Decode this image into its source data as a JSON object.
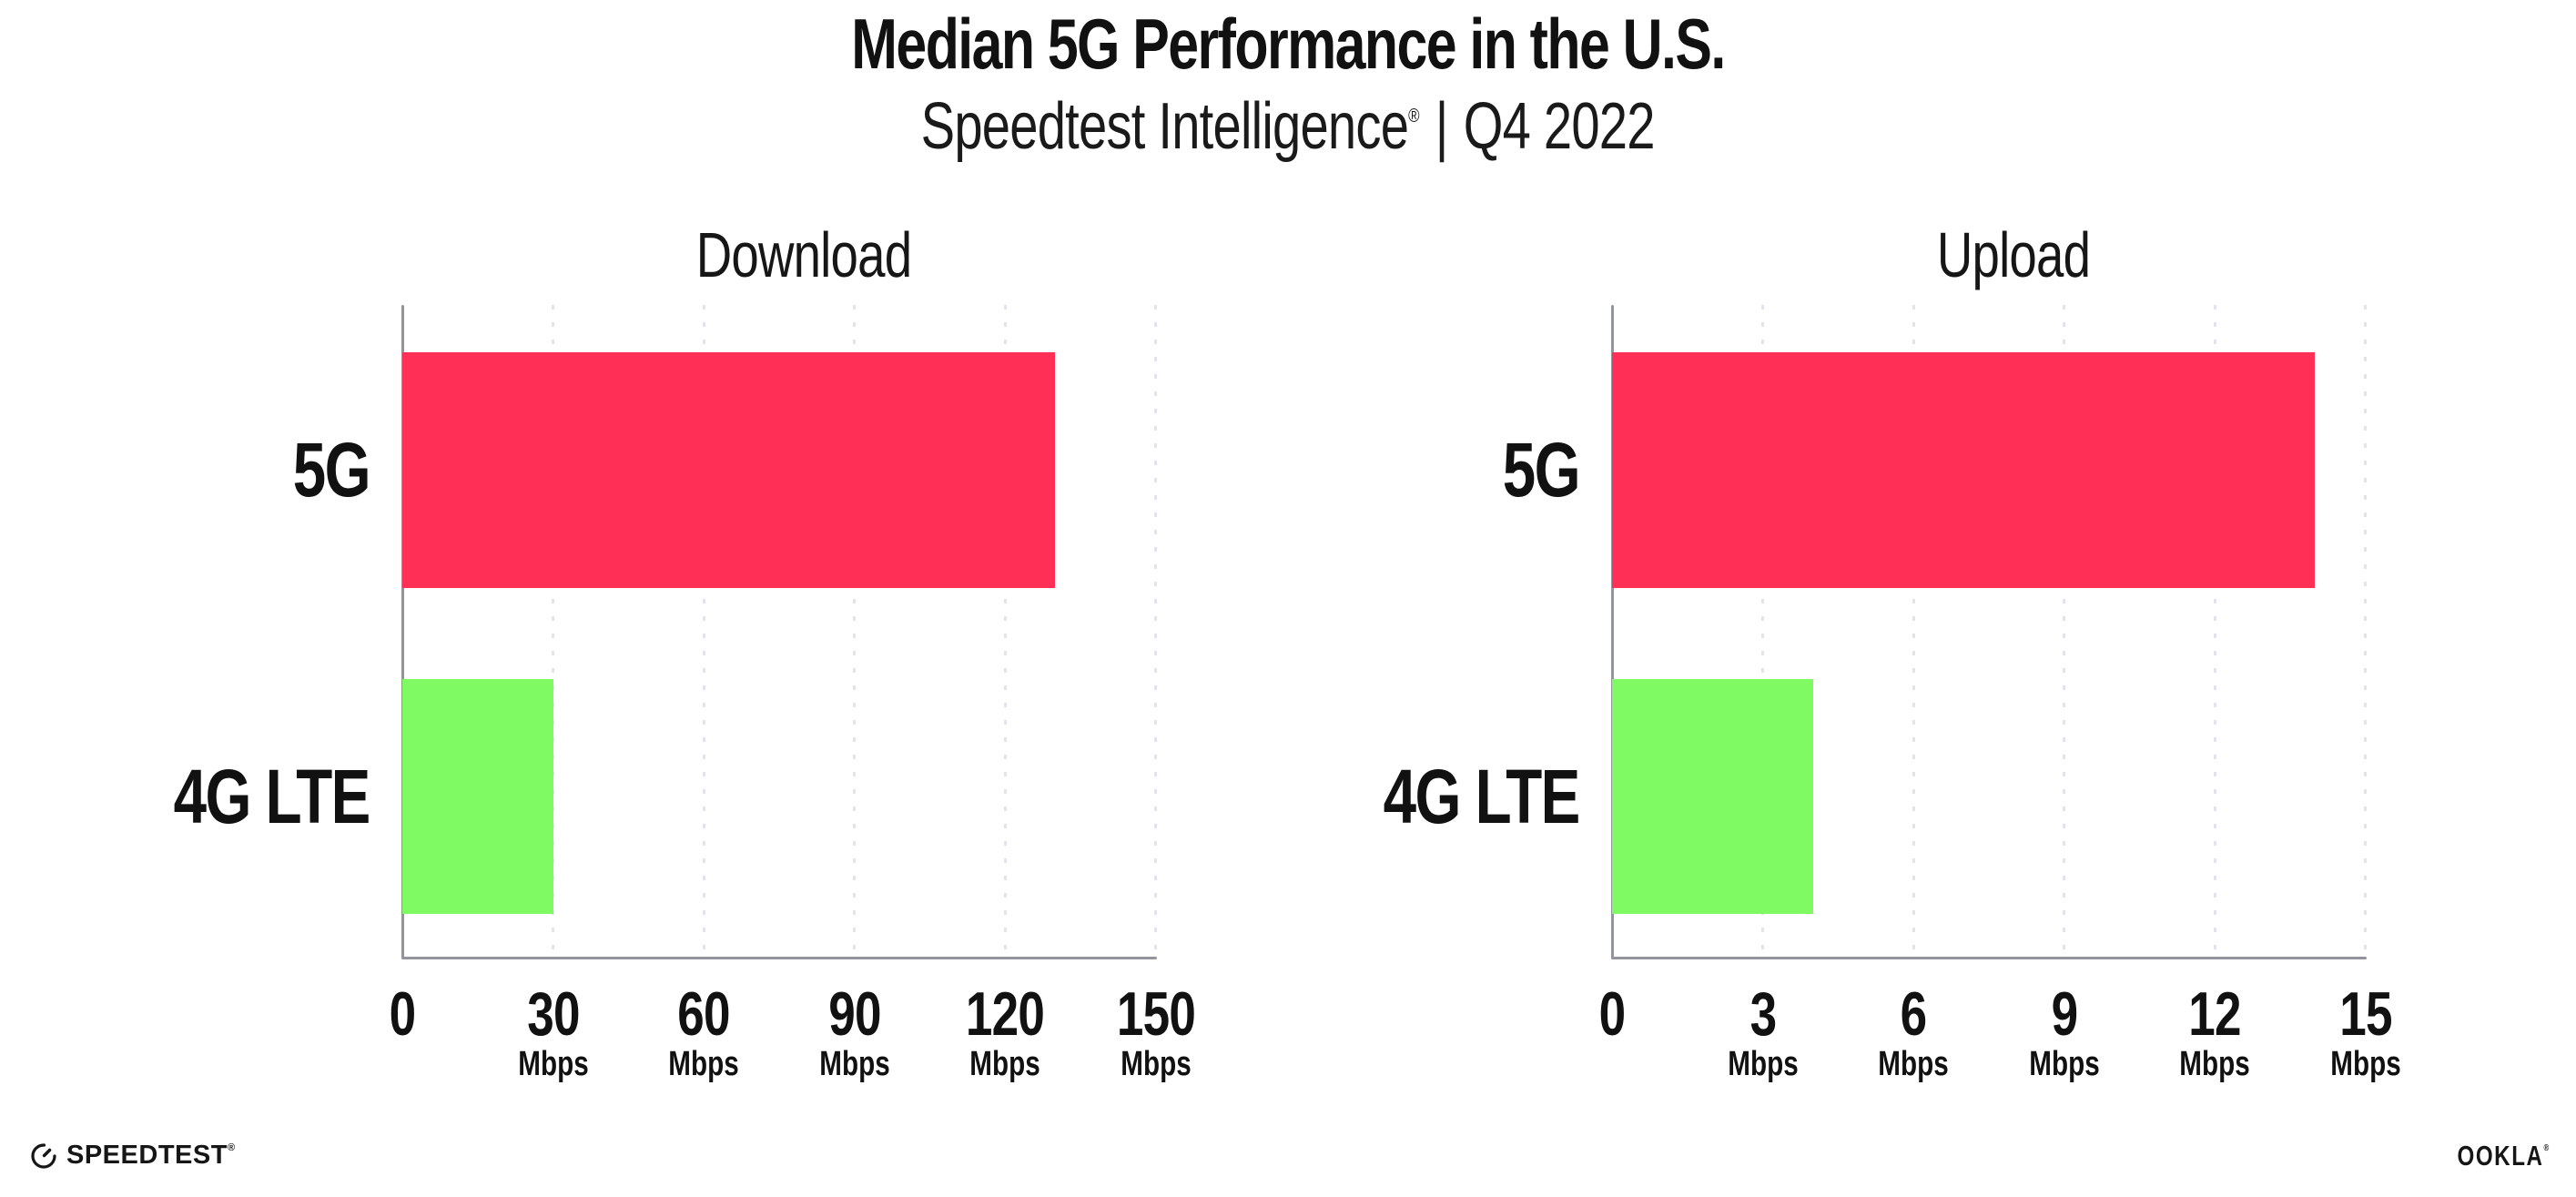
{
  "header": {
    "title": "Median 5G Performance in the U.S.",
    "subtitle_brand": "Speedtest Intelligence",
    "subtitle_reg": "®",
    "subtitle_separator": "|",
    "subtitle_period": "Q4 2022"
  },
  "footer": {
    "speedtest_label": "SPEEDTEST",
    "speedtest_reg": "®",
    "ookla_label": "OOKLA",
    "ookla_reg": "®"
  },
  "colors": {
    "bar_5g": "#FF2F55",
    "bar_4g_lte": "#7FFA63",
    "axis": "#94949C",
    "grid_dots": "#E3E3EE",
    "text": "#111111",
    "background": "#FFFFFF"
  },
  "chart_data": [
    {
      "type": "bar",
      "orientation": "horizontal",
      "title": "Download",
      "categories": [
        "5G",
        "4G LTE"
      ],
      "values": [
        130,
        30
      ],
      "unit": "Mbps",
      "xlabel": "",
      "ylabel": "",
      "xlim": [
        0,
        150
      ],
      "xticks": [
        0,
        30,
        60,
        90,
        120,
        150
      ],
      "grid": "vertical-dotted",
      "legend": "none",
      "bar_colors": [
        "#FF2F55",
        "#7FFA63"
      ]
    },
    {
      "type": "bar",
      "orientation": "horizontal",
      "title": "Upload",
      "categories": [
        "5G",
        "4G LTE"
      ],
      "values": [
        14,
        4
      ],
      "unit": "Mbps",
      "xlabel": "",
      "ylabel": "",
      "xlim": [
        0,
        15
      ],
      "xticks": [
        0,
        3,
        6,
        9,
        12,
        15
      ],
      "grid": "vertical-dotted",
      "legend": "none",
      "bar_colors": [
        "#FF2F55",
        "#7FFA63"
      ]
    }
  ]
}
